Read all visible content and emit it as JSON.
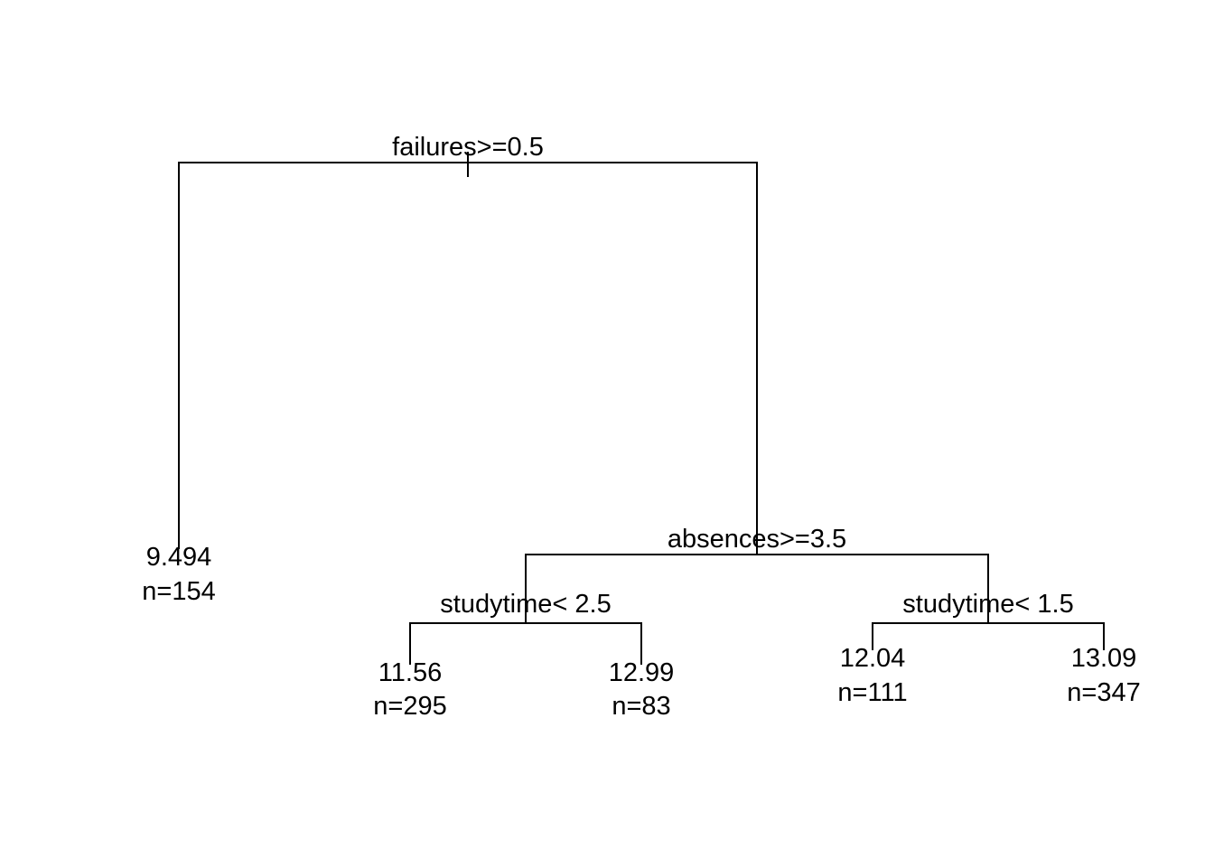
{
  "tree": {
    "root_split": {
      "label": "failures>=0.5"
    },
    "split_absences": {
      "label": "absences>=3.5"
    },
    "split_studytime_left": {
      "label": "studytime< 2.5"
    },
    "split_studytime_right": {
      "label": "studytime< 1.5"
    },
    "leaves": [
      {
        "value": "9.494",
        "n": "n=154"
      },
      {
        "value": "11.56",
        "n": "n=295"
      },
      {
        "value": "12.99",
        "n": "n=83"
      },
      {
        "value": "12.04",
        "n": "n=111"
      },
      {
        "value": "13.09",
        "n": "n=347"
      }
    ]
  },
  "colors": {
    "line": "#000000",
    "text": "#000000",
    "background": "#ffffff"
  }
}
